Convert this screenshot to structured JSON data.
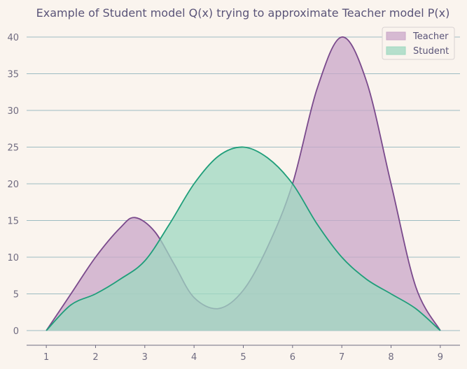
{
  "chart_data": {
    "type": "area",
    "title": "Example of Student model Q(x) trying to approximate Teacher model P(x)",
    "xlabel": "",
    "ylabel": "",
    "xlim": [
      0.6,
      9.4
    ],
    "ylim": [
      -2,
      42
    ],
    "xticks": [
      1,
      2,
      3,
      4,
      5,
      6,
      7,
      8,
      9
    ],
    "yticks": [
      0,
      5,
      10,
      15,
      20,
      25,
      30,
      35,
      40
    ],
    "grid": "horizontal",
    "legend_position": "top-right",
    "series": [
      {
        "name": "Teacher",
        "color": "#7a4a8c",
        "fill": "#c9a7c8",
        "x": [
          1,
          1.5,
          2,
          2.5,
          2.8,
          3.2,
          3.6,
          4,
          4.5,
          5,
          5.5,
          6,
          6.5,
          7,
          7.5,
          8,
          8.5,
          9
        ],
        "y": [
          0,
          5,
          10,
          14,
          15.4,
          13.5,
          9,
          4.5,
          3,
          5.5,
          11.5,
          20,
          33,
          40,
          34,
          20,
          6,
          0
        ]
      },
      {
        "name": "Student",
        "color": "#1f9e7a",
        "fill": "#9ed8c0",
        "x": [
          1,
          1.5,
          2,
          2.5,
          3,
          3.5,
          4,
          4.5,
          5,
          5.5,
          6,
          6.5,
          7,
          7.5,
          8,
          8.5,
          9
        ],
        "y": [
          0,
          3.5,
          5,
          7,
          9.5,
          14.5,
          20,
          23.8,
          25,
          23.5,
          20,
          14.5,
          10,
          7,
          5,
          3,
          0
        ]
      }
    ]
  }
}
